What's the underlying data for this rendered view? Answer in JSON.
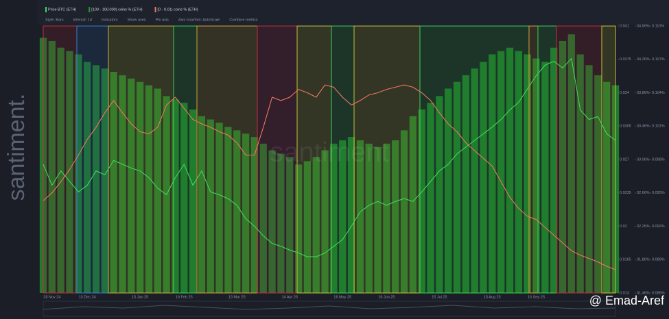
{
  "chart_data": {
    "type": "combo",
    "legend": true,
    "toolbar": [
      "Style: Bars",
      "Interval: 1d",
      "Indicators",
      "Show axes",
      "Pin axis",
      "Axis max/min: AutoScale",
      "Combine metrics"
    ],
    "brand": "santiment.",
    "watermark": "santiment",
    "credit": "@ Emad-Aref",
    "categories": [
      null,
      "28 Nov 24",
      null,
      null,
      null,
      "13 Dec 24",
      null,
      null,
      null,
      null,
      null,
      "15 Jan 25",
      null,
      null,
      null,
      null,
      "16 Feb 25",
      null,
      null,
      null,
      null,
      null,
      "13 Mar 25",
      null,
      null,
      null,
      null,
      null,
      "14 Apr 25",
      null,
      null,
      null,
      null,
      null,
      "16 May 25",
      null,
      null,
      null,
      null,
      "16 Jun 25",
      null,
      null,
      null,
      null,
      null,
      "15 Jul 25",
      null,
      null,
      null,
      null,
      null,
      "15 Aug 25",
      null,
      null,
      null,
      null,
      "16 Sep 25",
      null,
      null,
      null,
      null,
      null,
      null,
      null,
      null,
      null
    ],
    "series": [
      {
        "name": "Price BTC (ETH)",
        "kind": "line",
        "axis": "y",
        "color": "#3fd95a",
        "values": [
          0.0265,
          0.0243,
          0.0258,
          0.0247,
          0.0236,
          0.0243,
          0.0258,
          0.0254,
          0.0269,
          0.0265,
          0.0261,
          0.0258,
          0.0251,
          0.024,
          0.0233,
          0.0251,
          0.0265,
          0.0243,
          0.0258,
          0.0236,
          0.0233,
          0.0229,
          0.0222,
          0.0208,
          0.02,
          0.019,
          0.0182,
          0.0179,
          0.0175,
          0.0172,
          0.0168,
          0.0168,
          0.0172,
          0.0179,
          0.0186,
          0.02,
          0.0215,
          0.0222,
          0.0226,
          0.0222,
          0.0226,
          0.0229,
          0.0226,
          0.0236,
          0.0247,
          0.0258,
          0.0265,
          0.0276,
          0.0283,
          0.029,
          0.0297,
          0.0304,
          0.0312,
          0.0322,
          0.033,
          0.0344,
          0.0358,
          0.0369,
          0.0373,
          0.0366,
          0.0376,
          0.0322,
          0.0312,
          0.0315,
          0.0297,
          0.029
        ]
      },
      {
        "name": "[100 - 100.000) coins % (ETH)",
        "kind": "bar",
        "axis": "y2",
        "color": "#239a33",
        "values": [
          34.52,
          34.48,
          34.4,
          34.36,
          34.32,
          34.23,
          34.19,
          34.15,
          34.11,
          34.07,
          34.03,
          33.99,
          33.95,
          33.91,
          33.82,
          33.78,
          33.74,
          33.66,
          33.58,
          33.54,
          33.5,
          33.45,
          33.41,
          33.37,
          33.33,
          33.25,
          33.17,
          33.13,
          33.09,
          33.0,
          33.04,
          33.09,
          33.17,
          33.25,
          33.29,
          33.33,
          33.29,
          33.25,
          33.21,
          33.25,
          33.29,
          33.41,
          33.58,
          33.66,
          33.74,
          33.82,
          33.91,
          33.99,
          34.07,
          34.15,
          34.23,
          34.32,
          34.36,
          34.4,
          34.36,
          34.32,
          34.27,
          34.23,
          34.4,
          34.48,
          34.56,
          34.32,
          34.19,
          34.07,
          33.99,
          33.95
        ]
      },
      {
        "name": "[0 - 0.01) coins % (ETH)",
        "kind": "line",
        "axis": "y3",
        "color": "#f0785e",
        "values": [
          0.0943,
          0.095,
          0.096,
          0.0971,
          0.0984,
          0.0998,
          0.1009,
          0.1022,
          0.1033,
          0.1022,
          0.1012,
          0.1005,
          0.1003,
          0.1009,
          0.1029,
          0.1036,
          0.1026,
          0.1016,
          0.1012,
          0.1009,
          0.1005,
          0.1002,
          0.0995,
          0.0984,
          0.0984,
          0.1009,
          0.1036,
          0.1033,
          0.1036,
          0.1043,
          0.104,
          0.1036,
          0.1047,
          0.1045,
          0.1036,
          0.1029,
          0.1033,
          0.1038,
          0.104,
          0.1043,
          0.1045,
          0.1047,
          0.1045,
          0.104,
          0.1033,
          0.1022,
          0.1012,
          0.1005,
          0.0995,
          0.0988,
          0.0981,
          0.0974,
          0.096,
          0.0946,
          0.0936,
          0.0929,
          0.0926,
          0.0919,
          0.0912,
          0.0905,
          0.0898,
          0.0894,
          0.0891,
          0.0888,
          0.0884,
          0.0881
        ]
      }
    ],
    "ylim": [
      0.013,
      0.041
    ],
    "yticks": [
      0.013,
      0.0165,
      0.02,
      0.0235,
      0.027,
      0.0305,
      0.034,
      0.0375,
      0.041
    ],
    "y2lim": [
      31.46,
      34.66
    ],
    "y2ticks": [
      {
        "value": 31.46,
        "label": "31.46%"
      },
      {
        "value": 31.86,
        "label": "31.86%"
      },
      {
        "value": 32.26,
        "label": "32.26%"
      },
      {
        "value": 32.66,
        "label": "32.66%"
      },
      {
        "value": 33.06,
        "label": "33.06%"
      },
      {
        "value": 33.46,
        "label": "33.46%"
      },
      {
        "value": 33.86,
        "label": "33.86%"
      },
      {
        "value": 34.26,
        "label": "34.26%"
      },
      {
        "value": 34.66,
        "label": "34.66%"
      }
    ],
    "y3lim": [
      0.086,
      0.11
    ],
    "y3ticks": [
      {
        "value": 0.086,
        "label": "0.086%"
      },
      {
        "value": 0.089,
        "label": "0.089%"
      },
      {
        "value": 0.092,
        "label": "0.092%"
      },
      {
        "value": 0.095,
        "label": "0.095%"
      },
      {
        "value": 0.098,
        "label": "0.098%"
      },
      {
        "value": 0.101,
        "label": "0.101%"
      },
      {
        "value": 0.104,
        "label": "0.104%"
      },
      {
        "value": 0.107,
        "label": "0.107%"
      },
      {
        "value": 0.11,
        "label": "0.110%"
      }
    ]
  }
}
